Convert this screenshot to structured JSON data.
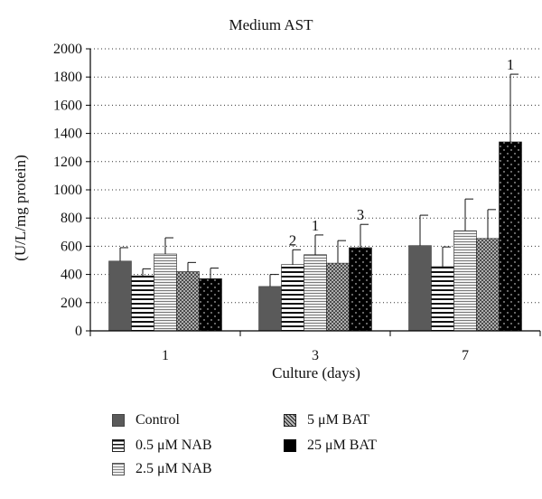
{
  "chart_data": {
    "type": "bar",
    "title": "Medium AST",
    "xlabel": "Culture (days)",
    "ylabel": "(U/L/mg protein)",
    "categories": [
      "1",
      "3",
      "7"
    ],
    "ylim": [
      0,
      2000
    ],
    "yticks": [
      0,
      200,
      400,
      600,
      800,
      1000,
      1200,
      1400,
      1600,
      1800,
      2000
    ],
    "grid": "horizontal dotted",
    "legend_position": "bottom",
    "series": [
      {
        "name": "Control",
        "values": [
          495,
          315,
          605
        ],
        "errors": [
          95,
          85,
          215
        ],
        "annotations": [
          "",
          "",
          ""
        ]
      },
      {
        "name": "0.5 μM NAB",
        "values": [
          390,
          470,
          455
        ],
        "errors": [
          50,
          105,
          140
        ],
        "annotations": [
          "",
          "2",
          ""
        ]
      },
      {
        "name": "2.5 μM NAB",
        "values": [
          545,
          540,
          710
        ],
        "errors": [
          115,
          140,
          225
        ],
        "annotations": [
          "",
          "1",
          ""
        ]
      },
      {
        "name": "5 μM BAT",
        "values": [
          420,
          480,
          655
        ],
        "errors": [
          65,
          160,
          205
        ],
        "annotations": [
          "",
          "",
          ""
        ]
      },
      {
        "name": "25 μM BAT",
        "values": [
          370,
          590,
          1340
        ],
        "errors": [
          75,
          165,
          480
        ],
        "annotations": [
          "",
          "3",
          "1"
        ]
      }
    ],
    "colors": {
      "Control": "#5a5a5a",
      "0.5 μM NAB": "horizontal-stripes",
      "2.5 μM NAB": "fine-horizontal-stripes",
      "5 μM BAT": "crosshatch",
      "25 μM BAT": "black-dotted"
    }
  }
}
